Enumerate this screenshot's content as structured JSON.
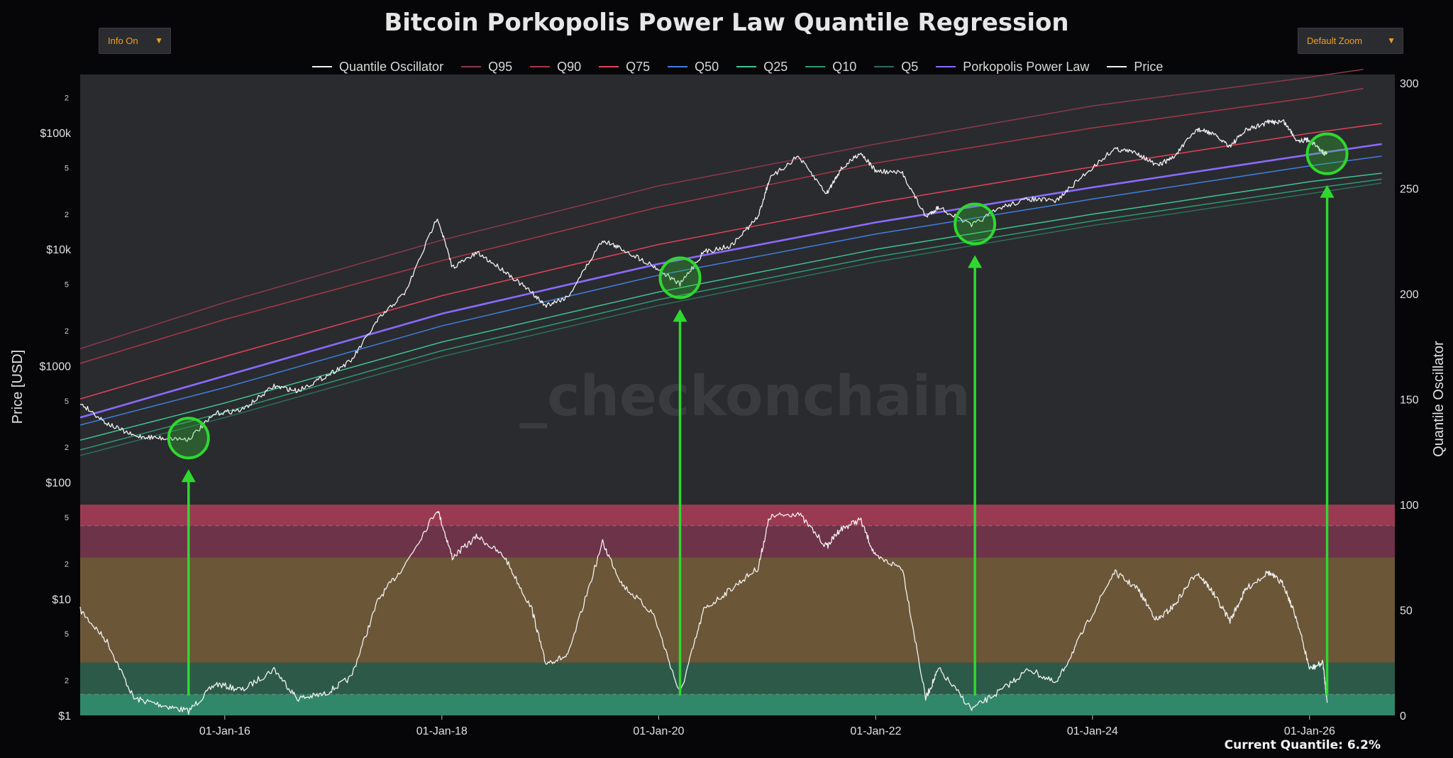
{
  "title": "Bitcoin Porkopolis Power Law Quantile Regression",
  "controls": {
    "info": {
      "label": "Info On",
      "caret": "▼"
    },
    "zoom": {
      "label": "Default Zoom",
      "caret": "▼"
    }
  },
  "watermark": "_checkonchain",
  "current_quantile": "Current Quantile: 6.2%",
  "colors": {
    "background": "#060609",
    "plot_bg": "#2a2b2e",
    "price": "#f2f2f2",
    "oscillator": "#f2f2f2",
    "Q95": "#8a3a4a",
    "Q90": "#a83848",
    "Q75": "#e0435a",
    "Q50": "#3f7fe0",
    "Q25": "#3fc490",
    "Q10": "#2e9a6e",
    "Q5": "#2c6e58",
    "power_law": "#8a6bff",
    "highlight": "#2fd82f",
    "band_top": "#9a3a52",
    "band_upper": "#6d3348",
    "band_mid": "#6b5637",
    "band_low": "#2d5a48",
    "band_bottom": "#31876a"
  },
  "chart_data": {
    "type": "line",
    "title": "Bitcoin Porkopolis Power Law Quantile Regression",
    "xlabel": "",
    "ylabel": "Price [USD]",
    "y2label": "Quantile Oscillator",
    "x_ticks": [
      "01-Jan-16",
      "01-Jan-18",
      "01-Jan-20",
      "01-Jan-22",
      "01-Jan-24",
      "01-Jan-26"
    ],
    "x_range": [
      "2014-09-01",
      "2026-10-15"
    ],
    "y_scale": "log",
    "y_ticks": [
      "$1",
      "2",
      "5",
      "$10",
      "2",
      "5",
      "$100",
      "2",
      "5",
      "$1000",
      "2",
      "5",
      "$10k",
      "2",
      "5",
      "$100k",
      "2"
    ],
    "ylim": [
      1,
      400000
    ],
    "y2_ticks": [
      "0",
      "50",
      "100",
      "150",
      "200",
      "250",
      "300"
    ],
    "y2lim": [
      0,
      300
    ],
    "grid": false,
    "legend_position": "top",
    "legend": [
      "Quantile Oscillator",
      "Q95",
      "Q90",
      "Q75",
      "Q50",
      "Q25",
      "Q10",
      "Q5",
      "Porkopolis Power Law",
      "Price"
    ],
    "oscillator_bands": [
      {
        "from": 90,
        "to": 100
      },
      {
        "from": 75,
        "to": 90
      },
      {
        "from": 25,
        "to": 75
      },
      {
        "from": 10,
        "to": 25
      },
      {
        "from": 0,
        "to": 10
      }
    ],
    "series": [
      {
        "name": "Price",
        "axis": "left",
        "x": [
          "2014-09-01",
          "2014-12-01",
          "2015-03-01",
          "2015-06-01",
          "2015-09-01",
          "2015-12-01",
          "2016-03-01",
          "2016-06-15",
          "2016-09-01",
          "2016-12-01",
          "2017-03-01",
          "2017-06-01",
          "2017-09-01",
          "2017-12-17",
          "2018-02-05",
          "2018-05-01",
          "2018-08-01",
          "2018-11-01",
          "2018-12-15",
          "2019-03-01",
          "2019-06-26",
          "2019-09-01",
          "2019-12-15",
          "2020-03-13",
          "2020-06-01",
          "2020-09-01",
          "2020-12-01",
          "2021-01-08",
          "2021-04-14",
          "2021-07-20",
          "2021-09-01",
          "2021-11-10",
          "2022-01-01",
          "2022-04-01",
          "2022-06-18",
          "2022-08-01",
          "2022-11-20",
          "2023-03-01",
          "2023-06-01",
          "2023-09-01",
          "2023-12-01",
          "2024-03-14",
          "2024-06-01",
          "2024-08-05",
          "2024-10-01",
          "2024-12-17",
          "2025-02-01",
          "2025-04-08",
          "2025-06-01",
          "2025-08-14",
          "2025-10-06",
          "2025-11-20",
          "2026-01-01",
          "2026-02-15",
          "2026-03-01"
        ],
        "values": [
          480,
          320,
          250,
          240,
          235,
          390,
          420,
          670,
          610,
          800,
          1100,
          2500,
          4300,
          19000,
          7000,
          9300,
          6500,
          4200,
          3300,
          3900,
          12000,
          10000,
          7200,
          5000,
          9500,
          10700,
          19000,
          40000,
          63000,
          30000,
          47000,
          68000,
          47000,
          45000,
          19000,
          23000,
          16000,
          23000,
          27000,
          26000,
          43000,
          73000,
          67000,
          52000,
          62000,
          107000,
          100000,
          77000,
          105000,
          123000,
          125000,
          86000,
          87000,
          68000,
          66000
        ]
      },
      {
        "name": "Quantile Oscillator",
        "axis": "right",
        "x": [
          "2014-09-01",
          "2014-12-01",
          "2015-03-01",
          "2015-06-01",
          "2015-09-01",
          "2015-12-01",
          "2016-03-01",
          "2016-06-15",
          "2016-09-01",
          "2016-12-01",
          "2017-03-01",
          "2017-06-01",
          "2017-09-01",
          "2017-12-17",
          "2018-02-05",
          "2018-05-01",
          "2018-08-01",
          "2018-11-01",
          "2018-12-15",
          "2019-03-01",
          "2019-06-26",
          "2019-09-01",
          "2019-12-15",
          "2020-03-13",
          "2020-06-01",
          "2020-09-01",
          "2020-12-01",
          "2021-01-08",
          "2021-04-14",
          "2021-07-20",
          "2021-09-01",
          "2021-11-10",
          "2022-01-01",
          "2022-04-01",
          "2022-06-18",
          "2022-08-01",
          "2022-11-20",
          "2023-03-01",
          "2023-06-01",
          "2023-09-01",
          "2023-12-01",
          "2024-03-14",
          "2024-06-01",
          "2024-08-05",
          "2024-10-01",
          "2024-12-17",
          "2025-02-01",
          "2025-04-08",
          "2025-06-01",
          "2025-08-14",
          "2025-10-06",
          "2025-11-20",
          "2026-01-01",
          "2026-02-15",
          "2026-03-01"
        ],
        "values": [
          50,
          35,
          8,
          5,
          2,
          15,
          12,
          22,
          8,
          10,
          18,
          55,
          72,
          98,
          75,
          85,
          75,
          50,
          25,
          28,
          82,
          62,
          48,
          10,
          50,
          60,
          70,
          94,
          96,
          80,
          88,
          93,
          75,
          70,
          8,
          22,
          3,
          12,
          22,
          15,
          40,
          68,
          60,
          45,
          52,
          68,
          60,
          45,
          60,
          68,
          62,
          45,
          22,
          25,
          6
        ]
      },
      {
        "name": "Porkopolis Power Law",
        "axis": "left",
        "x": [
          "2014-09-01",
          "2016-01-01",
          "2018-01-01",
          "2020-01-01",
          "2022-01-01",
          "2024-01-01",
          "2026-01-01",
          "2026-09-01"
        ],
        "values": [
          360,
          820,
          2800,
          7500,
          17000,
          34000,
          65000,
          80000
        ]
      },
      {
        "name": "Q95",
        "axis": "left",
        "x": [
          "2014-09-01",
          "2016-01-01",
          "2018-01-01",
          "2020-01-01",
          "2022-01-01",
          "2024-01-01",
          "2026-01-01",
          "2026-07-01"
        ],
        "values": [
          1400,
          3500,
          12000,
          35000,
          80000,
          170000,
          300000,
          350000
        ]
      },
      {
        "name": "Q90",
        "axis": "left",
        "x": [
          "2014-09-01",
          "2016-01-01",
          "2018-01-01",
          "2020-01-01",
          "2022-01-01",
          "2024-01-01",
          "2026-01-01",
          "2026-07-01"
        ],
        "values": [
          1050,
          2500,
          8000,
          23000,
          55000,
          110000,
          200000,
          240000
        ]
      },
      {
        "name": "Q75",
        "axis": "left",
        "x": [
          "2014-09-01",
          "2016-01-01",
          "2018-01-01",
          "2020-01-01",
          "2022-01-01",
          "2024-01-01",
          "2026-01-01",
          "2026-09-01"
        ],
        "values": [
          520,
          1200,
          4000,
          11000,
          25000,
          51000,
          99000,
          120000
        ]
      },
      {
        "name": "Q50",
        "axis": "left",
        "x": [
          "2014-09-01",
          "2016-01-01",
          "2018-01-01",
          "2020-01-01",
          "2022-01-01",
          "2024-01-01",
          "2026-01-01",
          "2026-09-01"
        ],
        "values": [
          310,
          650,
          2200,
          6000,
          13500,
          27000,
          52000,
          63000
        ]
      },
      {
        "name": "Q25",
        "axis": "left",
        "x": [
          "2014-09-01",
          "2016-01-01",
          "2018-01-01",
          "2020-01-01",
          "2022-01-01",
          "2024-01-01",
          "2026-01-01",
          "2026-09-01"
        ],
        "values": [
          230,
          480,
          1600,
          4300,
          10000,
          20000,
          38000,
          45000
        ]
      },
      {
        "name": "Q10",
        "axis": "left",
        "x": [
          "2014-09-01",
          "2016-01-01",
          "2018-01-01",
          "2020-01-01",
          "2022-01-01",
          "2024-01-01",
          "2026-01-01",
          "2026-09-01"
        ],
        "values": [
          190,
          400,
          1350,
          3700,
          8600,
          17500,
          33000,
          40000
        ]
      },
      {
        "name": "Q5",
        "axis": "left",
        "x": [
          "2014-09-01",
          "2016-01-01",
          "2018-01-01",
          "2020-01-01",
          "2022-01-01",
          "2024-01-01",
          "2026-01-01",
          "2026-09-01"
        ],
        "values": [
          170,
          360,
          1200,
          3300,
          7800,
          16000,
          30000,
          37000
        ]
      }
    ],
    "highlights": [
      {
        "x": "2015-09-01",
        "y": 240
      },
      {
        "x": "2020-03-13",
        "y": 5700
      },
      {
        "x": "2022-12-01",
        "y": 16500
      },
      {
        "x": "2026-03-01",
        "y": 66000
      }
    ]
  }
}
